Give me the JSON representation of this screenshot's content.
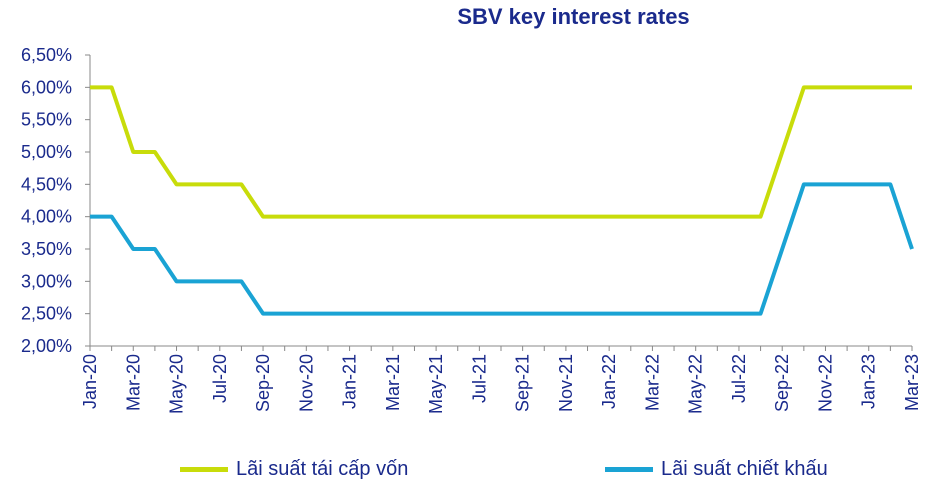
{
  "chart_data": {
    "type": "line",
    "title": "SBV key interest rates",
    "xlabel": "",
    "ylabel": "",
    "ylim": [
      2.0,
      6.5
    ],
    "ytick_labels": [
      "2,00%",
      "2,50%",
      "3,00%",
      "3,50%",
      "4,00%",
      "4,50%",
      "5,00%",
      "5,50%",
      "6,00%",
      "6,50%"
    ],
    "ytick_values": [
      2.0,
      2.5,
      3.0,
      3.5,
      4.0,
      4.5,
      5.0,
      5.5,
      6.0,
      6.5
    ],
    "x": [
      "Jan-20",
      "Feb-20",
      "Mar-20",
      "Apr-20",
      "May-20",
      "Jun-20",
      "Jul-20",
      "Aug-20",
      "Sep-20",
      "Oct-20",
      "Nov-20",
      "Dec-20",
      "Jan-21",
      "Feb-21",
      "Mar-21",
      "Apr-21",
      "May-21",
      "Jun-21",
      "Jul-21",
      "Aug-21",
      "Sep-21",
      "Oct-21",
      "Nov-21",
      "Dec-21",
      "Jan-22",
      "Feb-22",
      "Mar-22",
      "Apr-22",
      "May-22",
      "Jun-22",
      "Jul-22",
      "Aug-22",
      "Sep-22",
      "Oct-22",
      "Nov-22",
      "Dec-22",
      "Jan-23",
      "Feb-23",
      "Mar-23"
    ],
    "xtick_labels": [
      "Jan-20",
      "Mar-20",
      "May-20",
      "Jul-20",
      "Sep-20",
      "Nov-20",
      "Jan-21",
      "Mar-21",
      "May-21",
      "Jul-21",
      "Sep-21",
      "Nov-21",
      "Jan-22",
      "Mar-22",
      "May-22",
      "Jul-22",
      "Sep-22",
      "Nov-22",
      "Jan-23",
      "Mar-23"
    ],
    "grid": false,
    "legend_position": "bottom",
    "series": [
      {
        "name": "Lãi suất tái cấp vốn",
        "color": "#c8dc0a",
        "values": [
          6.0,
          6.0,
          5.0,
          5.0,
          4.5,
          4.5,
          4.5,
          4.5,
          4.0,
          4.0,
          4.0,
          4.0,
          4.0,
          4.0,
          4.0,
          4.0,
          4.0,
          4.0,
          4.0,
          4.0,
          4.0,
          4.0,
          4.0,
          4.0,
          4.0,
          4.0,
          4.0,
          4.0,
          4.0,
          4.0,
          4.0,
          4.0,
          5.0,
          6.0,
          6.0,
          6.0,
          6.0,
          6.0,
          6.0
        ]
      },
      {
        "name": "Lãi suất chiết khấu",
        "color": "#1aa3d4",
        "values": [
          4.0,
          4.0,
          3.5,
          3.5,
          3.0,
          3.0,
          3.0,
          3.0,
          2.5,
          2.5,
          2.5,
          2.5,
          2.5,
          2.5,
          2.5,
          2.5,
          2.5,
          2.5,
          2.5,
          2.5,
          2.5,
          2.5,
          2.5,
          2.5,
          2.5,
          2.5,
          2.5,
          2.5,
          2.5,
          2.5,
          2.5,
          2.5,
          3.5,
          4.5,
          4.5,
          4.5,
          4.5,
          4.5,
          3.5
        ]
      }
    ]
  }
}
